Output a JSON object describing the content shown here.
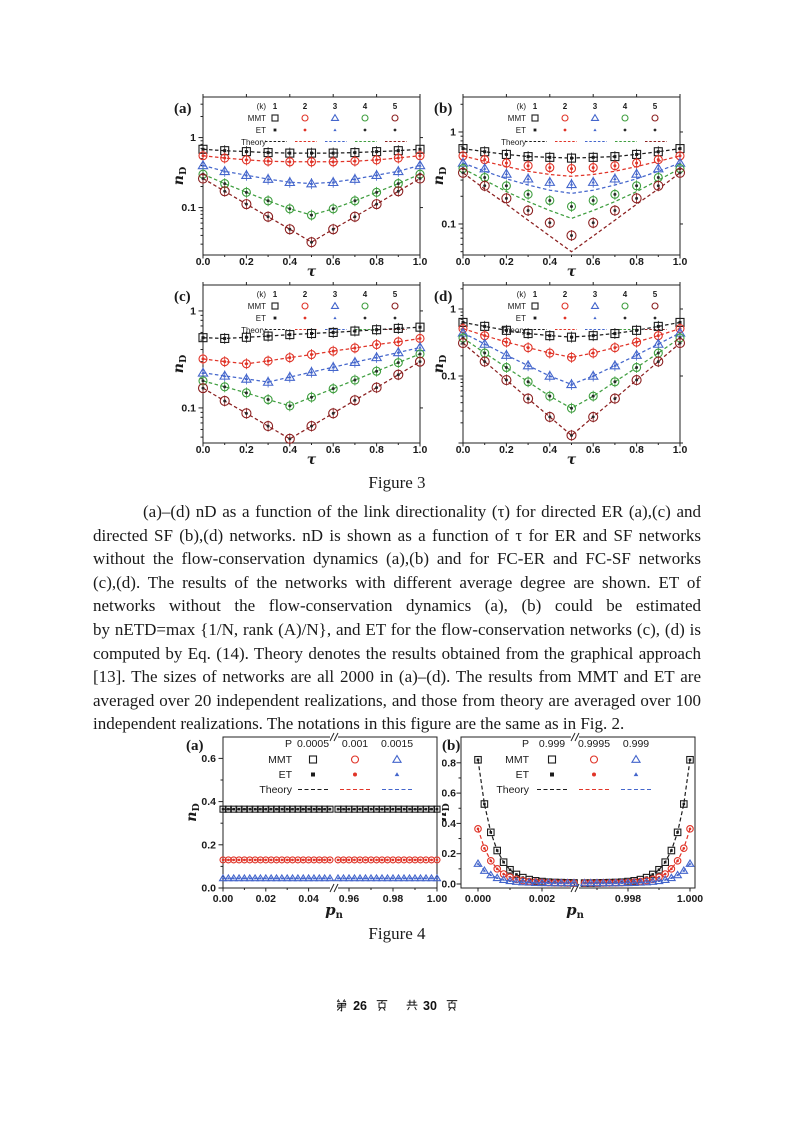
{
  "chart_data": {
    "figure3": {
      "type": "line",
      "title": "Figure 3",
      "xlabel": "τ",
      "ylabel": {
        "base": "n",
        "sub": "D"
      },
      "x_ticks": [
        "0.0",
        "0.2",
        "0.4",
        "0.6",
        "0.8",
        "1.0"
      ],
      "y_tick_labels": [
        "1",
        "0.1"
      ],
      "tau": [
        0,
        0.1,
        0.2,
        0.3,
        0.4,
        0.5,
        0.6,
        0.7,
        0.8,
        0.9,
        1.0
      ],
      "legend": {
        "header": "(k)",
        "cols": [
          "1",
          "2",
          "3",
          "4",
          "5"
        ],
        "rows": [
          "MMT",
          "ET",
          "Theory"
        ]
      },
      "colors": [
        "#1c1c1c",
        "#e03428",
        "#4466cc",
        "#3f9e3f",
        "#8b2020"
      ],
      "et_colors": [
        "#1c1c1c",
        "#e03428",
        "#4466cc",
        "#2a2a2a",
        "#2a2a2a"
      ],
      "marker_shapes": [
        "square",
        "circle",
        "triangle",
        "circle",
        "circle"
      ],
      "panels": [
        {
          "label": "(a)",
          "ymax": 3.8,
          "ymin": 0.021,
          "series": [
            [
              0.68,
              0.65,
              0.63,
              0.61,
              0.6,
              0.6,
              0.6,
              0.61,
              0.63,
              0.65,
              0.68
            ],
            [
              0.55,
              0.51,
              0.48,
              0.46,
              0.45,
              0.45,
              0.45,
              0.46,
              0.48,
              0.51,
              0.55
            ],
            [
              0.4,
              0.33,
              0.29,
              0.255,
              0.23,
              0.22,
              0.23,
              0.255,
              0.29,
              0.33,
              0.4
            ],
            [
              0.3,
              0.22,
              0.165,
              0.125,
              0.096,
              0.078,
              0.096,
              0.125,
              0.165,
              0.22,
              0.3
            ],
            [
              0.26,
              0.171,
              0.112,
              0.074,
              0.049,
              0.032,
              0.049,
              0.074,
              0.112,
              0.171,
              0.26
            ]
          ]
        },
        {
          "label": "(b)",
          "ymax": 2.4,
          "ymin": 0.046,
          "series": [
            [
              0.66,
              0.61,
              0.57,
              0.54,
              0.53,
              0.52,
              0.53,
              0.54,
              0.57,
              0.61,
              0.66
            ],
            [
              0.55,
              0.5,
              0.46,
              0.43,
              0.41,
              0.4,
              0.41,
              0.43,
              0.46,
              0.5,
              0.55
            ],
            [
              0.46,
              0.4,
              0.35,
              0.31,
              0.285,
              0.27,
              0.285,
              0.31,
              0.35,
              0.4,
              0.46
            ],
            [
              0.4,
              0.32,
              0.26,
              0.21,
              0.18,
              0.155,
              0.18,
              0.21,
              0.26,
              0.32,
              0.4
            ],
            [
              0.36,
              0.26,
              0.19,
              0.14,
              0.103,
              0.075,
              0.103,
              0.14,
              0.19,
              0.26,
              0.36
            ]
          ],
          "theory": [
            [
              0.66,
              0.61,
              0.57,
              0.54,
              0.53,
              0.52,
              0.53,
              0.54,
              0.57,
              0.61,
              0.66
            ],
            [
              0.55,
              0.48,
              0.42,
              0.375,
              0.345,
              0.33,
              0.345,
              0.375,
              0.42,
              0.48,
              0.55
            ],
            [
              0.46,
              0.375,
              0.31,
              0.265,
              0.233,
              0.215,
              0.233,
              0.265,
              0.31,
              0.375,
              0.46
            ],
            [
              0.4,
              0.3,
              0.225,
              0.175,
              0.14,
              0.115,
              0.14,
              0.175,
              0.225,
              0.3,
              0.4
            ],
            [
              0.36,
              0.24,
              0.164,
              0.11,
              0.074,
              0.05,
              0.074,
              0.11,
              0.164,
              0.24,
              0.36
            ]
          ]
        },
        {
          "label": "(c)",
          "ymax": 1.85,
          "ymin": 0.0435,
          "series": [
            [
              0.53,
              0.52,
              0.535,
              0.55,
              0.57,
              0.585,
              0.6,
              0.62,
              0.64,
              0.66,
              0.68
            ],
            [
              0.32,
              0.3,
              0.285,
              0.305,
              0.33,
              0.355,
              0.385,
              0.415,
              0.45,
              0.48,
              0.52
            ],
            [
              0.23,
              0.214,
              0.199,
              0.185,
              0.208,
              0.234,
              0.263,
              0.296,
              0.332,
              0.373,
              0.42
            ],
            [
              0.19,
              0.165,
              0.143,
              0.122,
              0.105,
              0.129,
              0.158,
              0.194,
              0.239,
              0.293,
              0.36
            ],
            [
              0.16,
              0.118,
              0.088,
              0.065,
              0.048,
              0.065,
              0.088,
              0.12,
              0.162,
              0.22,
              0.3
            ]
          ]
        },
        {
          "label": "(d)",
          "ymax": 2.28,
          "ymin": 0.01,
          "series": [
            [
              0.63,
              0.55,
              0.48,
              0.43,
              0.4,
              0.38,
              0.4,
              0.43,
              0.48,
              0.55,
              0.63
            ],
            [
              0.51,
              0.4,
              0.32,
              0.265,
              0.22,
              0.19,
              0.22,
              0.265,
              0.32,
              0.4,
              0.51
            ],
            [
              0.44,
              0.3,
              0.205,
              0.143,
              0.1,
              0.075,
              0.1,
              0.143,
              0.205,
              0.3,
              0.44
            ],
            [
              0.37,
              0.22,
              0.134,
              0.082,
              0.05,
              0.033,
              0.05,
              0.082,
              0.134,
              0.22,
              0.37
            ],
            [
              0.31,
              0.164,
              0.087,
              0.046,
              0.0245,
              0.013,
              0.0245,
              0.046,
              0.087,
              0.164,
              0.31
            ]
          ]
        }
      ]
    },
    "figure4": {
      "type": "line",
      "title": "Figure 4",
      "xlabel": {
        "base": "p",
        "sub": "n"
      },
      "ylabel": {
        "base": "n",
        "sub": "D"
      },
      "legend_rows": [
        "P",
        "MMT",
        "ET",
        "Theory"
      ],
      "colors": [
        "#1c1c1c",
        "#e03428",
        "#4466cc"
      ],
      "marker_shapes": [
        "square",
        "circle",
        "triangle"
      ],
      "panels": [
        {
          "label": "(a)",
          "legend_values": [
            "0.0005",
            "0.001",
            "0.0015"
          ],
          "y_ticks": [
            "0.0",
            "0.2",
            "0.4",
            "0.6"
          ],
          "x_ticks_left": [
            "0.00",
            "0.02",
            "0.04"
          ],
          "x_ticks_right": [
            "0.96",
            "0.98",
            "1.00"
          ],
          "levels": [
            0.365,
            0.13,
            0.045
          ]
        },
        {
          "label": "(b)",
          "legend_values": [
            "0.999",
            "0.9995",
            "0.999"
          ],
          "y_ticks": [
            "0.0",
            "0.2",
            "0.4",
            "0.6",
            "0.8"
          ],
          "x_ticks_left": [
            "0.000",
            "0.002"
          ],
          "x_ticks_right": [
            "0.998",
            "1.000"
          ],
          "x": [
            0,
            0.0002,
            0.0004,
            0.0006,
            0.0008,
            0.001,
            0.0012,
            0.0014,
            0.0016,
            0.0018,
            0.002,
            0.0022,
            0.0024,
            0.0026,
            0.0028,
            0.003
          ],
          "series": [
            [
              0.82,
              0.528,
              0.341,
              0.221,
              0.144,
              0.094,
              0.063,
              0.042,
              0.029,
              0.021,
              0.016,
              0.012,
              0.01,
              0.009,
              0.008,
              0.007
            ],
            [
              0.364,
              0.236,
              0.153,
              0.1,
              0.066,
              0.045,
              0.031,
              0.022,
              0.016,
              0.013,
              0.01,
              0.009,
              0.008,
              0.007,
              0.007,
              0.006
            ],
            [
              0.134,
              0.088,
              0.059,
              0.04,
              0.028,
              0.02,
              0.015,
              0.012,
              0.01,
              0.008,
              0.007,
              0.007,
              0.006,
              0.006,
              0.006,
              0.006
            ]
          ]
        }
      ]
    }
  },
  "caption3": {
    "title": "Figure 3",
    "lines": [
      "(a)–(d) nD as a function of the link directionality (τ) for directed ER (a),(c) and",
      "directed SF (b),(d) networks. nD is shown as a function of τ for ER and SF networks",
      "without the flow-conservation dynamics (a),(b) and for FC-ER and FC-SF networks",
      "(c),(d). The results of the networks with different average degree are shown. ET of",
      "networks without the flow-conservation dynamics (a), (b) could be estimated",
      "by nETD=max {1/N, rank (A)/N}, and ET for the flow-conservation networks (c), (d) is",
      "computed by Eq. (14). Theory denotes the results obtained from the graphical approach",
      "[13]. The sizes of networks are all 2000 in (a)–(d). The results from MMT and ET are",
      "averaged over 20 independent realizations, and those from theory are averaged over 100",
      "independent realizations. The notations in this figure are the same as in Fig. 2."
    ]
  },
  "caption4": {
    "title": "Figure 4"
  },
  "footer": {
    "prefix": "第",
    "page_num": "26",
    "page_word": "页",
    "total_prefix": "共",
    "total_num": "30",
    "total_word": "页"
  }
}
